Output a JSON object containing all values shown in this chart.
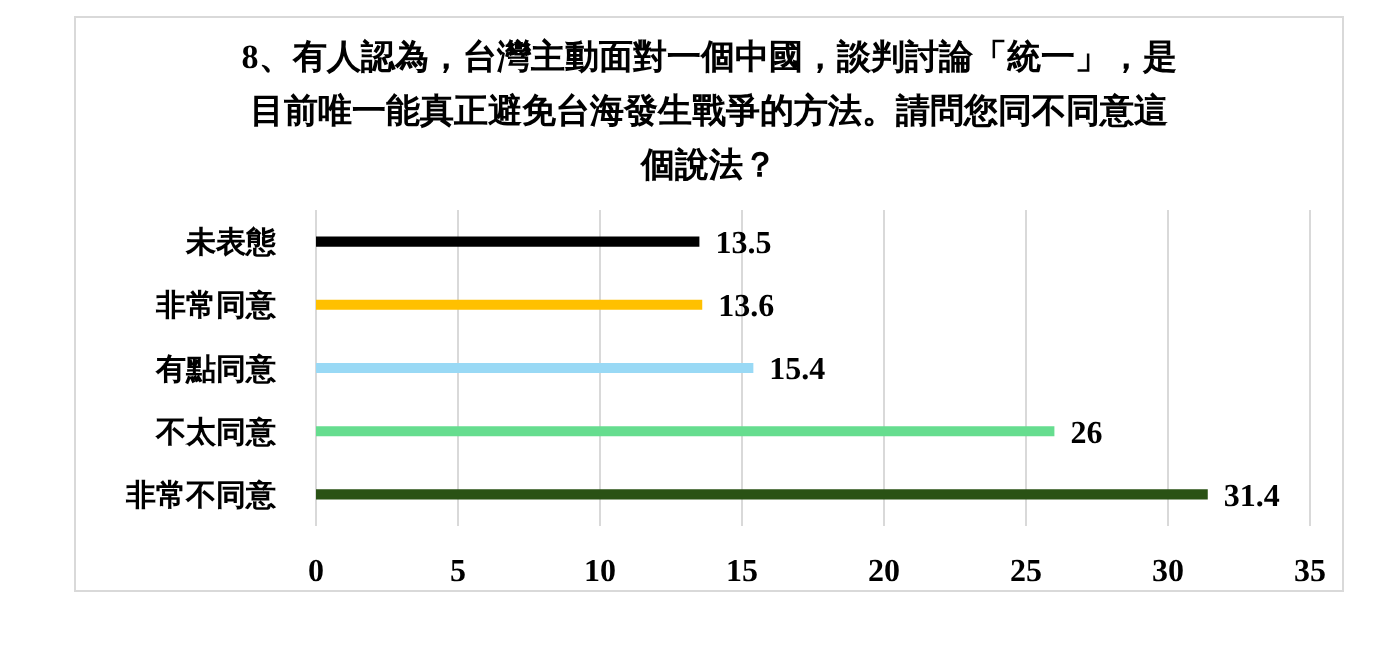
{
  "chart_data": {
    "type": "bar",
    "orientation": "horizontal",
    "title": "8、有人認為，台灣主動面對一個中國，談判討論「統一」，是目前唯一能真正避免台海發生戰爭的方法。請問您同不同意這個說法？",
    "categories": [
      "未表態",
      "非常同意",
      "有點同意",
      "不太同意",
      "非常不同意"
    ],
    "values": [
      13.5,
      13.6,
      15.4,
      26,
      31.4
    ],
    "colors": [
      "#000000",
      "#ffc000",
      "#99d9f5",
      "#66dd8f",
      "#2a5215"
    ],
    "xlim": [
      0,
      35
    ],
    "xticks": [
      0,
      5,
      10,
      15,
      20,
      25,
      30,
      35
    ],
    "grid": "x",
    "data_labels": true,
    "legend": false
  }
}
